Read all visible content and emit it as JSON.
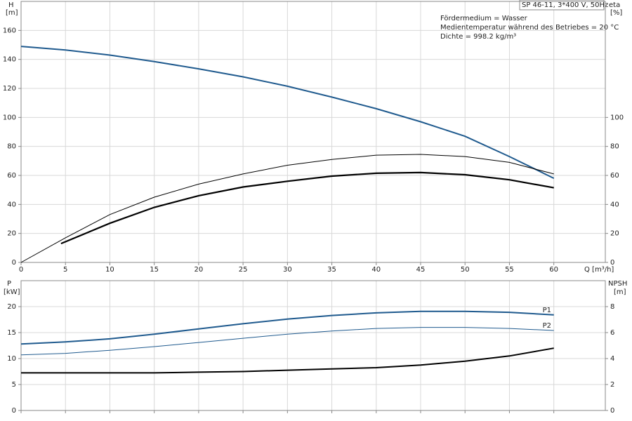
{
  "chart_data": [
    {
      "type": "line",
      "ylabel": "H",
      "yunit": "[m]",
      "y2label": "eta",
      "y2unit": "[%]",
      "xlabel": "Q [m³/h]",
      "info_box": "SP 46-11, 3*400 V, 50Hz",
      "notes": [
        "Fördermedium = Wasser",
        "Medientemperatur während des Betriebes = 20 °C",
        "Dichte = 998.2 kg/m³"
      ],
      "xlim": [
        0,
        65.8
      ],
      "xticks": [
        0,
        5,
        10,
        15,
        20,
        25,
        30,
        35,
        40,
        45,
        50,
        55,
        60
      ],
      "ylim": [
        0,
        180
      ],
      "yticks": [
        0,
        20,
        40,
        60,
        80,
        100,
        120,
        140,
        160
      ],
      "y2lim": [
        0,
        180
      ],
      "y2ticks": [
        0,
        20,
        40,
        60,
        80,
        100
      ],
      "grid": true,
      "series": [
        {
          "color": "#1f5a8e",
          "line_width": 2,
          "x": [
            0,
            5,
            10,
            15,
            20,
            25,
            30,
            35,
            40,
            45,
            50,
            55,
            60
          ],
          "values": [
            149,
            146.5,
            143,
            138.5,
            133.5,
            128,
            121.5,
            114,
            106,
            97,
            87,
            73,
            58
          ]
        },
        {
          "color": "#000000",
          "line_width": 1,
          "axis": "y2",
          "x": [
            0,
            5,
            10,
            15,
            20,
            25,
            30,
            35,
            40,
            45,
            50,
            55,
            60
          ],
          "values": [
            0,
            17,
            33,
            45,
            54,
            61,
            67,
            71,
            74,
            74.5,
            73,
            69,
            61
          ]
        },
        {
          "color": "#000000",
          "line_width": 2.2,
          "axis": "y2",
          "x": [
            4.5,
            10,
            15,
            20,
            25,
            30,
            35,
            40,
            45,
            50,
            55,
            60
          ],
          "values": [
            13,
            27,
            38,
            46,
            52,
            56,
            59.5,
            61.5,
            62,
            60.5,
            57,
            51.5
          ]
        }
      ]
    },
    {
      "type": "line",
      "ylabel": "P",
      "yunit": "[kW]",
      "y2label": "NPSH",
      "y2unit": "[m]",
      "xlim": [
        0,
        65.8
      ],
      "ylim": [
        0,
        25
      ],
      "yticks": [
        0,
        5,
        10,
        15,
        20
      ],
      "y2lim": [
        0,
        10
      ],
      "y2ticks": [
        0,
        2,
        4,
        6,
        8
      ],
      "grid": true,
      "series": [
        {
          "name": "P1",
          "color": "#1f5a8e",
          "line_width": 2,
          "x": [
            0,
            5,
            10,
            15,
            20,
            25,
            30,
            35,
            40,
            45,
            50,
            55,
            60
          ],
          "values": [
            12.8,
            13.2,
            13.8,
            14.7,
            15.7,
            16.7,
            17.6,
            18.3,
            18.8,
            19.1,
            19.1,
            18.9,
            18.4
          ]
        },
        {
          "name": "P2",
          "color": "#1f5a8e",
          "line_width": 1,
          "x": [
            0,
            5,
            10,
            15,
            20,
            25,
            30,
            35,
            40,
            45,
            50,
            55,
            60
          ],
          "values": [
            10.7,
            11.0,
            11.6,
            12.3,
            13.1,
            13.9,
            14.7,
            15.3,
            15.8,
            16.0,
            16.0,
            15.8,
            15.4
          ]
        },
        {
          "color": "#000000",
          "line_width": 2,
          "axis": "y2",
          "x": [
            0,
            5,
            10,
            15,
            20,
            25,
            30,
            35,
            40,
            45,
            50,
            55,
            60
          ],
          "values": [
            2.9,
            2.9,
            2.9,
            2.9,
            2.95,
            3.0,
            3.1,
            3.2,
            3.3,
            3.5,
            3.8,
            4.2,
            4.8
          ]
        }
      ]
    }
  ]
}
